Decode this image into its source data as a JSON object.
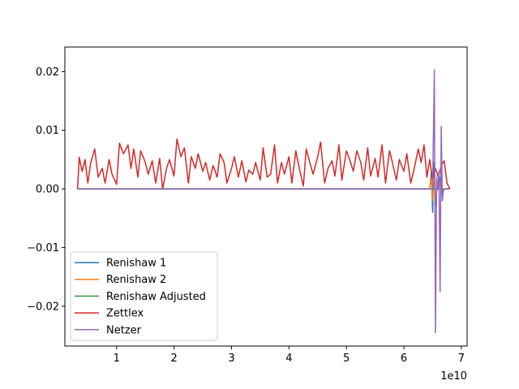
{
  "chart_data": {
    "type": "line",
    "title": "",
    "xlabel": "",
    "ylabel": "",
    "x_offset_label": "1e10",
    "xlim": [
      0.1,
      7.1
    ],
    "ylim": [
      -0.0268,
      0.0242
    ],
    "x_ticks": [
      1,
      2,
      3,
      4,
      5,
      6,
      7
    ],
    "x_tick_labels": [
      "1",
      "2",
      "3",
      "4",
      "5",
      "6",
      "7"
    ],
    "y_ticks": [
      0.02,
      0.01,
      0.0,
      -0.01,
      -0.02
    ],
    "y_tick_labels": [
      "0.02",
      "0.01",
      "0.00",
      "−0.01",
      "−0.02"
    ],
    "grid": false,
    "legend_position": "lower-left",
    "series": [
      {
        "name": "Renishaw 1",
        "color": "#1f77b4",
        "x": [
          0.32,
          6.3,
          6.45,
          6.48,
          6.5,
          6.52,
          6.55,
          6.58,
          6.6,
          6.63,
          6.66,
          6.7,
          6.8
        ],
        "y": [
          0.0,
          0.0,
          0.0,
          0.003,
          -0.004,
          0.0045,
          -0.003,
          0.001,
          0.0,
          0.002,
          -0.001,
          0.0,
          0.0
        ]
      },
      {
        "name": "Renishaw 2",
        "color": "#ff7f0e",
        "x": [
          0.32,
          6.3,
          6.45,
          6.48,
          6.5,
          6.52,
          6.55,
          6.58,
          6.6,
          6.63,
          6.66,
          6.7,
          6.8
        ],
        "y": [
          0.0,
          0.0,
          0.0,
          0.002,
          -0.002,
          0.002,
          -0.0015,
          0.001,
          0.0,
          0.001,
          -0.0005,
          0.0,
          0.0
        ]
      },
      {
        "name": "Renishaw Adjusted",
        "color": "#2ca02c",
        "x": [
          0.32,
          6.8
        ],
        "y": [
          0.0,
          0.0
        ]
      },
      {
        "name": "Zettlex",
        "color": "#d62728",
        "x": [
          0.32,
          0.35,
          0.4,
          0.45,
          0.5,
          0.55,
          0.62,
          0.68,
          0.75,
          0.8,
          0.87,
          0.92,
          1.0,
          1.05,
          1.12,
          1.2,
          1.25,
          1.3,
          1.37,
          1.42,
          1.5,
          1.55,
          1.62,
          1.68,
          1.75,
          1.8,
          1.87,
          1.92,
          2.0,
          2.05,
          2.12,
          2.18,
          2.25,
          2.3,
          2.37,
          2.42,
          2.5,
          2.55,
          2.62,
          2.68,
          2.75,
          2.8,
          2.87,
          2.92,
          3.0,
          3.05,
          3.12,
          3.18,
          3.25,
          3.3,
          3.37,
          3.42,
          3.5,
          3.55,
          3.62,
          3.68,
          3.75,
          3.8,
          3.87,
          3.92,
          4.0,
          4.05,
          4.12,
          4.18,
          4.25,
          4.3,
          4.37,
          4.42,
          4.5,
          4.55,
          4.62,
          4.68,
          4.75,
          4.8,
          4.87,
          4.92,
          5.0,
          5.05,
          5.12,
          5.18,
          5.25,
          5.3,
          5.37,
          5.42,
          5.5,
          5.55,
          5.62,
          5.68,
          5.75,
          5.8,
          5.87,
          5.92,
          6.0,
          6.05,
          6.12,
          6.18,
          6.25,
          6.3,
          6.35,
          6.4,
          6.45,
          6.5,
          6.55,
          6.6,
          6.65,
          6.7,
          6.75,
          6.8
        ],
        "y": [
          0.0,
          0.0054,
          0.003,
          0.005,
          0.001,
          0.0045,
          0.0068,
          0.002,
          0.0035,
          0.001,
          0.005,
          0.0025,
          0.0008,
          0.0078,
          0.006,
          0.0075,
          0.0035,
          0.0068,
          0.002,
          0.0065,
          0.0045,
          0.0025,
          0.0048,
          0.001,
          0.0052,
          0.0,
          0.0035,
          0.005,
          0.0022,
          0.0085,
          0.0055,
          0.007,
          0.001,
          0.0055,
          0.0035,
          0.006,
          0.003,
          0.0045,
          0.0015,
          0.004,
          0.002,
          0.006,
          0.0045,
          0.001,
          0.0035,
          0.0055,
          0.002,
          0.0048,
          0.0012,
          0.0032,
          0.0025,
          0.0045,
          0.0015,
          0.007,
          0.002,
          0.0025,
          0.0075,
          0.001,
          0.0045,
          0.0025,
          0.0055,
          0.001,
          0.0065,
          0.0035,
          0.0005,
          0.0068,
          0.0042,
          0.0025,
          0.0055,
          0.008,
          0.001,
          0.0035,
          0.0048,
          0.0022,
          0.0075,
          0.0015,
          0.0065,
          0.0052,
          0.003,
          0.0065,
          0.0045,
          0.0015,
          0.007,
          0.0022,
          0.0052,
          0.002,
          0.0075,
          0.001,
          0.0065,
          0.0045,
          0.0015,
          0.005,
          0.003,
          0.006,
          0.001,
          0.0035,
          0.0068,
          0.0045,
          0.0075,
          0.002,
          0.005,
          0.0015,
          0.0035,
          0.002,
          0.004,
          0.0048,
          0.001,
          0.0
        ]
      },
      {
        "name": "Netzer",
        "color": "#9467bd",
        "x": [
          0.32,
          6.5,
          6.53,
          6.55,
          6.57,
          6.59,
          6.61,
          6.63,
          6.65,
          6.67,
          6.69,
          6.8
        ],
        "y": [
          0.0,
          0.0,
          0.0203,
          -0.0245,
          0.002,
          0.0,
          0.003,
          -0.0175,
          0.0107,
          -0.002,
          0.0,
          0.0
        ]
      }
    ]
  }
}
